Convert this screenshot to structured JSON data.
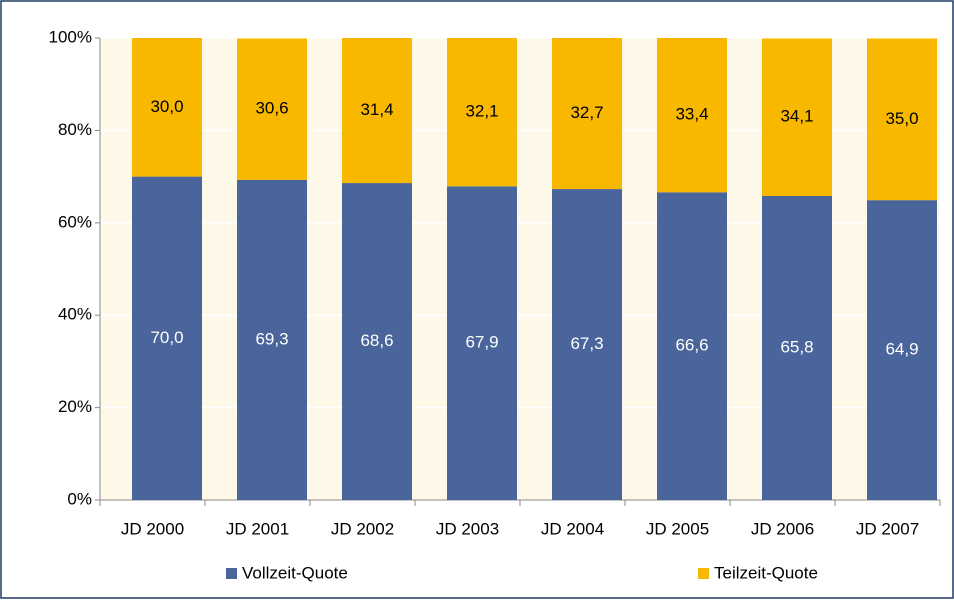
{
  "chart_data": {
    "type": "stacked_bar",
    "categories": [
      "JD 2000",
      "JD 2001",
      "JD 2002",
      "JD 2003",
      "JD 2004",
      "JD 2005",
      "JD 2006",
      "JD 2007"
    ],
    "series": [
      {
        "name": "Vollzeit-Quote",
        "color": "#4a659b",
        "values": [
          70.0,
          69.3,
          68.6,
          67.9,
          67.3,
          66.6,
          65.8,
          64.9
        ],
        "value_labels": [
          "70,0",
          "69,3",
          "68,6",
          "67,9",
          "67,3",
          "66,6",
          "65,8",
          "64,9"
        ],
        "label_color": "#ffffff"
      },
      {
        "name": "Teilzeit-Quote",
        "color": "#f9b800",
        "values": [
          30.0,
          30.6,
          31.4,
          32.1,
          32.7,
          33.4,
          34.1,
          35.0
        ],
        "value_labels": [
          "30,0",
          "30,6",
          "31,4",
          "32,1",
          "32,7",
          "33,4",
          "34,1",
          "35,0"
        ],
        "label_color": "#000000"
      }
    ],
    "ylim": [
      0,
      100
    ],
    "yticks": [
      {
        "value": 0,
        "label": "0%"
      },
      {
        "value": 20,
        "label": "20%"
      },
      {
        "value": 40,
        "label": "40%"
      },
      {
        "value": 60,
        "label": "60%"
      },
      {
        "value": 80,
        "label": "80%"
      },
      {
        "value": 100,
        "label": "100%"
      }
    ],
    "grid": true
  }
}
